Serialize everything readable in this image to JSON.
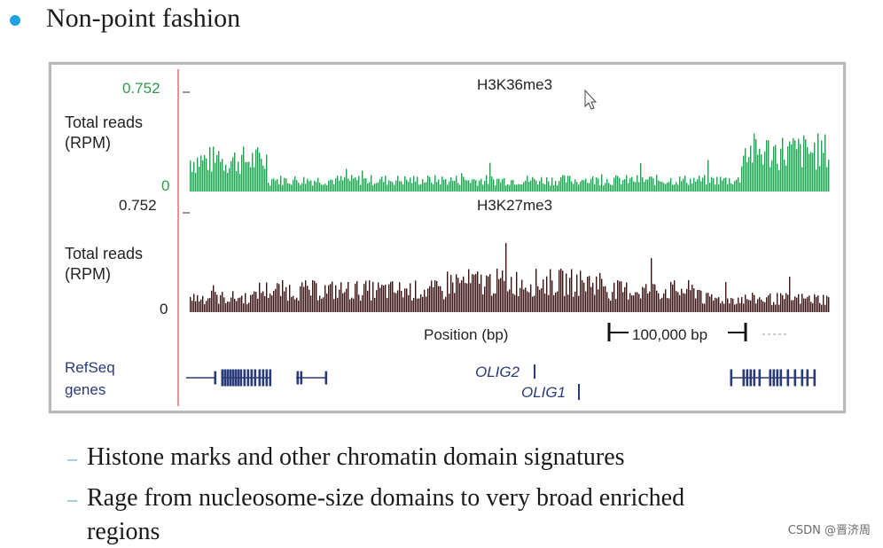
{
  "slide": {
    "heading": "Non-point fashion",
    "sub_bullets": [
      "Histone marks and other chromatin domain signatures",
      "Rage from nucleosome-size domains to very broad enriched",
      "regions"
    ]
  },
  "figure": {
    "track1": {
      "title": "H3K36me3",
      "ymax_label": "0.752",
      "ymin_label": "0",
      "ylabel_line1": "Total reads",
      "ylabel_line2": "(RPM)",
      "color": "#2e9a4e"
    },
    "track2": {
      "title": "H3K27me3",
      "ymax_label": "0.752",
      "ymin_label": "0",
      "ylabel_line1": "Total reads",
      "ylabel_line2": "(RPM)",
      "color": "#3a1414"
    },
    "xaxis_label": "Position (bp)",
    "scale_label": "100,000 bp",
    "genes_label_line1": "RefSeq",
    "genes_label_line2": "genes",
    "gene_olig2": "OLIG2",
    "gene_olig1": "OLIG1",
    "label_color": "#2a3a7a"
  },
  "watermark": "CSDN @晋济周",
  "colors": {
    "bullet": "#1fa1e6",
    "dash": "#5aa7d6",
    "axis_line": "#e07070"
  }
}
